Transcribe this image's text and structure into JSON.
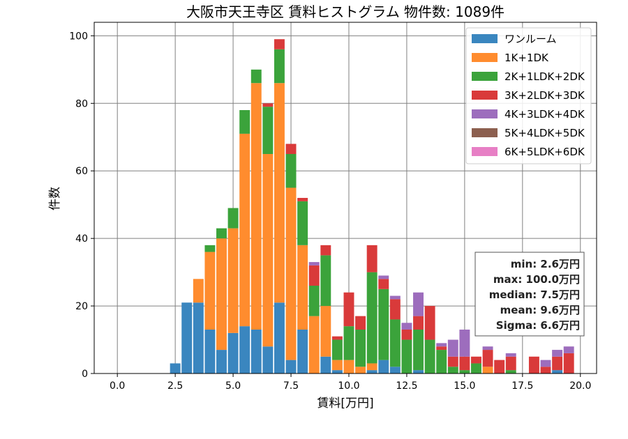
{
  "chart_data": {
    "type": "bar",
    "stacked": true,
    "title": "大阪市天王寺区 賃料ヒストグラム 物件数: 1089件",
    "xlabel": "賃料[万円]",
    "ylabel": "件数",
    "xlim": [
      -1.0,
      20.7
    ],
    "ylim": [
      0,
      104
    ],
    "xticks": [
      "0.0",
      "2.5",
      "5.0",
      "7.5",
      "10.0",
      "12.5",
      "15.0",
      "17.5",
      "20.0"
    ],
    "yticks": [
      "0",
      "20",
      "40",
      "60",
      "80",
      "100"
    ],
    "grid": true,
    "legend_position": "upper right",
    "bin_width": 0.5,
    "x": [
      2.5,
      3.0,
      3.5,
      4.0,
      4.5,
      5.0,
      5.5,
      6.0,
      6.5,
      7.0,
      7.5,
      8.0,
      8.5,
      9.0,
      9.5,
      10.0,
      10.5,
      11.0,
      11.5,
      12.0,
      12.5,
      13.0,
      13.5,
      14.0,
      14.5,
      15.0,
      15.5,
      16.0,
      16.5,
      17.0,
      17.5,
      18.0,
      18.5,
      19.0,
      19.5
    ],
    "series": [
      {
        "name": "ワンルーム",
        "color": "#3a86bf",
        "values": [
          3,
          21,
          21,
          13,
          7,
          12,
          14,
          13,
          8,
          21,
          4,
          13,
          0,
          5,
          1,
          0,
          0,
          1,
          4,
          2,
          0,
          1,
          0,
          0,
          0,
          0,
          0,
          0,
          0,
          0,
          0,
          0,
          0,
          1,
          0
        ]
      },
      {
        "name": "1K+1DK",
        "color": "#ff8c2e",
        "values": [
          0,
          0,
          7,
          23,
          33,
          31,
          57,
          73,
          57,
          65,
          51,
          25,
          17,
          15,
          3,
          4,
          2,
          2,
          0,
          0,
          0,
          0,
          0,
          0,
          0,
          0,
          0,
          2,
          0,
          0,
          0,
          0,
          0,
          0,
          0
        ]
      },
      {
        "name": "2K+1LDK+2DK",
        "color": "#3ba33b",
        "values": [
          0,
          0,
          0,
          2,
          3,
          6,
          7,
          4,
          14,
          10,
          10,
          13,
          9,
          15,
          6,
          10,
          11,
          27,
          21,
          14,
          10,
          12,
          10,
          7,
          2,
          1,
          3,
          0,
          0,
          1,
          0,
          0,
          0,
          0,
          0
        ]
      },
      {
        "name": "3K+2LDK+3DK",
        "color": "#d93a3a",
        "values": [
          0,
          0,
          0,
          0,
          0,
          0,
          0,
          0,
          1,
          3,
          3,
          1,
          6,
          3,
          1,
          10,
          4,
          8,
          3,
          6,
          3,
          4,
          10,
          1,
          3,
          4,
          2,
          5,
          4,
          4,
          0,
          5,
          2,
          4,
          6
        ]
      },
      {
        "name": "4K+3LDK+4DK",
        "color": "#9d6dbd",
        "values": [
          0,
          0,
          0,
          0,
          0,
          0,
          0,
          0,
          0,
          0,
          0,
          0,
          1,
          0,
          0,
          0,
          0,
          0,
          1,
          1,
          2,
          7,
          0,
          1,
          5,
          8,
          0,
          1,
          0,
          1,
          0,
          0,
          2,
          2,
          2
        ]
      },
      {
        "name": "5K+4LDK+5DK",
        "color": "#8c5f4f",
        "values": [
          0,
          0,
          0,
          0,
          0,
          0,
          0,
          0,
          0,
          0,
          0,
          0,
          0,
          0,
          0,
          0,
          0,
          0,
          0,
          0,
          0,
          0,
          0,
          0,
          0,
          0,
          0,
          0,
          0,
          0,
          0,
          0,
          0,
          0,
          0
        ]
      },
      {
        "name": "6K+5LDK+6DK",
        "color": "#e77fc5",
        "values": [
          0,
          0,
          0,
          0,
          0,
          0,
          0,
          0,
          0,
          0,
          0,
          0,
          0,
          0,
          0,
          0,
          0,
          0,
          0,
          0,
          0,
          0,
          0,
          0,
          0,
          0,
          0,
          0,
          0,
          0,
          0,
          0,
          0,
          0,
          0
        ]
      }
    ],
    "stats": [
      "min: 2.6万円",
      "max: 100.0万円",
      "median: 7.5万円",
      "mean: 9.6万円",
      "Sigma: 6.6万円"
    ]
  }
}
